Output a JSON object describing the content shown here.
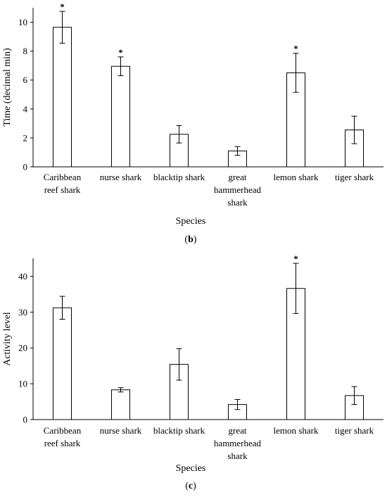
{
  "chart_data": [
    {
      "panel_label": "(b)",
      "panel_letter": "b",
      "type": "bar",
      "title": "",
      "xlabel": "Species",
      "ylabel": "Time (decimal min)",
      "ylim": [
        0,
        11
      ],
      "yticks": [
        0,
        2,
        4,
        6,
        8,
        10
      ],
      "grid": false,
      "legend": "none",
      "categories": [
        [
          "Caribbean",
          "reef shark"
        ],
        [
          "nurse shark"
        ],
        [
          "blacktip shark"
        ],
        [
          "great",
          "hammerhead",
          "shark"
        ],
        [
          "lemon shark"
        ],
        [
          "tiger shark"
        ]
      ],
      "values": [
        9.65,
        6.95,
        2.25,
        1.1,
        6.5,
        2.55
      ],
      "errors": [
        1.1,
        0.65,
        0.6,
        0.3,
        1.35,
        0.95
      ],
      "significance": [
        "*",
        "*",
        "",
        "",
        "*",
        ""
      ],
      "colors": {
        "bar_fill": "#ffffff",
        "stroke": "#000000"
      }
    },
    {
      "panel_label": "(c)",
      "panel_letter": "c",
      "type": "bar",
      "title": "",
      "xlabel": "Species",
      "ylabel": "Activity level",
      "ylim": [
        0,
        45
      ],
      "yticks": [
        0,
        10,
        20,
        30,
        40
      ],
      "grid": false,
      "legend": "none",
      "categories": [
        [
          "Caribbean",
          "reef shark"
        ],
        [
          "nurse shark"
        ],
        [
          "blacktip shark"
        ],
        [
          "great",
          "hammerhead",
          "shark"
        ],
        [
          "lemon shark"
        ],
        [
          "tiger shark"
        ]
      ],
      "values": [
        31.2,
        8.3,
        15.4,
        4.2,
        36.6,
        6.7
      ],
      "errors": [
        3.2,
        0.6,
        4.4,
        1.4,
        7.0,
        2.5
      ],
      "significance": [
        "",
        "",
        "",
        "",
        "*",
        ""
      ],
      "colors": {
        "bar_fill": "#ffffff",
        "stroke": "#000000"
      }
    }
  ]
}
